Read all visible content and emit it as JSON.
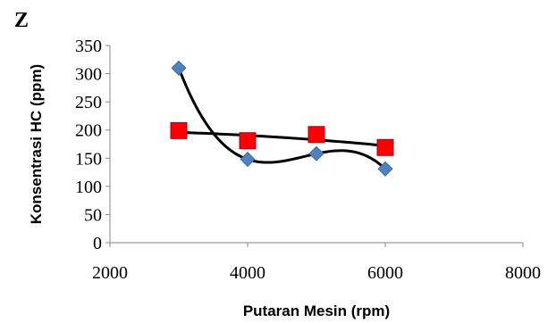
{
  "panel_label": "Z",
  "chart_data": {
    "type": "scatter",
    "title": "",
    "xlabel": "Putaran Mesin (rpm)",
    "ylabel": "Konsentrasi HC (ppm)",
    "xlim": [
      2000,
      8000
    ],
    "ylim": [
      0,
      350
    ],
    "x_ticks": [
      2000,
      4000,
      6000,
      8000
    ],
    "y_ticks": [
      0,
      50,
      100,
      150,
      200,
      250,
      300,
      350
    ],
    "grid": false,
    "legend": "none",
    "series": [
      {
        "marker": "diamond",
        "color": "#4F81BD",
        "x": [
          3000,
          4000,
          5000,
          6000
        ],
        "y": [
          310,
          148,
          158,
          131
        ],
        "trendline": "polynomial-order-3"
      },
      {
        "marker": "square",
        "color": "#FF0000",
        "x": [
          3000,
          4000,
          5000,
          6000
        ],
        "y": [
          199,
          181,
          192,
          169
        ],
        "trendline": "polynomial-order-2"
      }
    ],
    "trendline_color": "#000000"
  }
}
